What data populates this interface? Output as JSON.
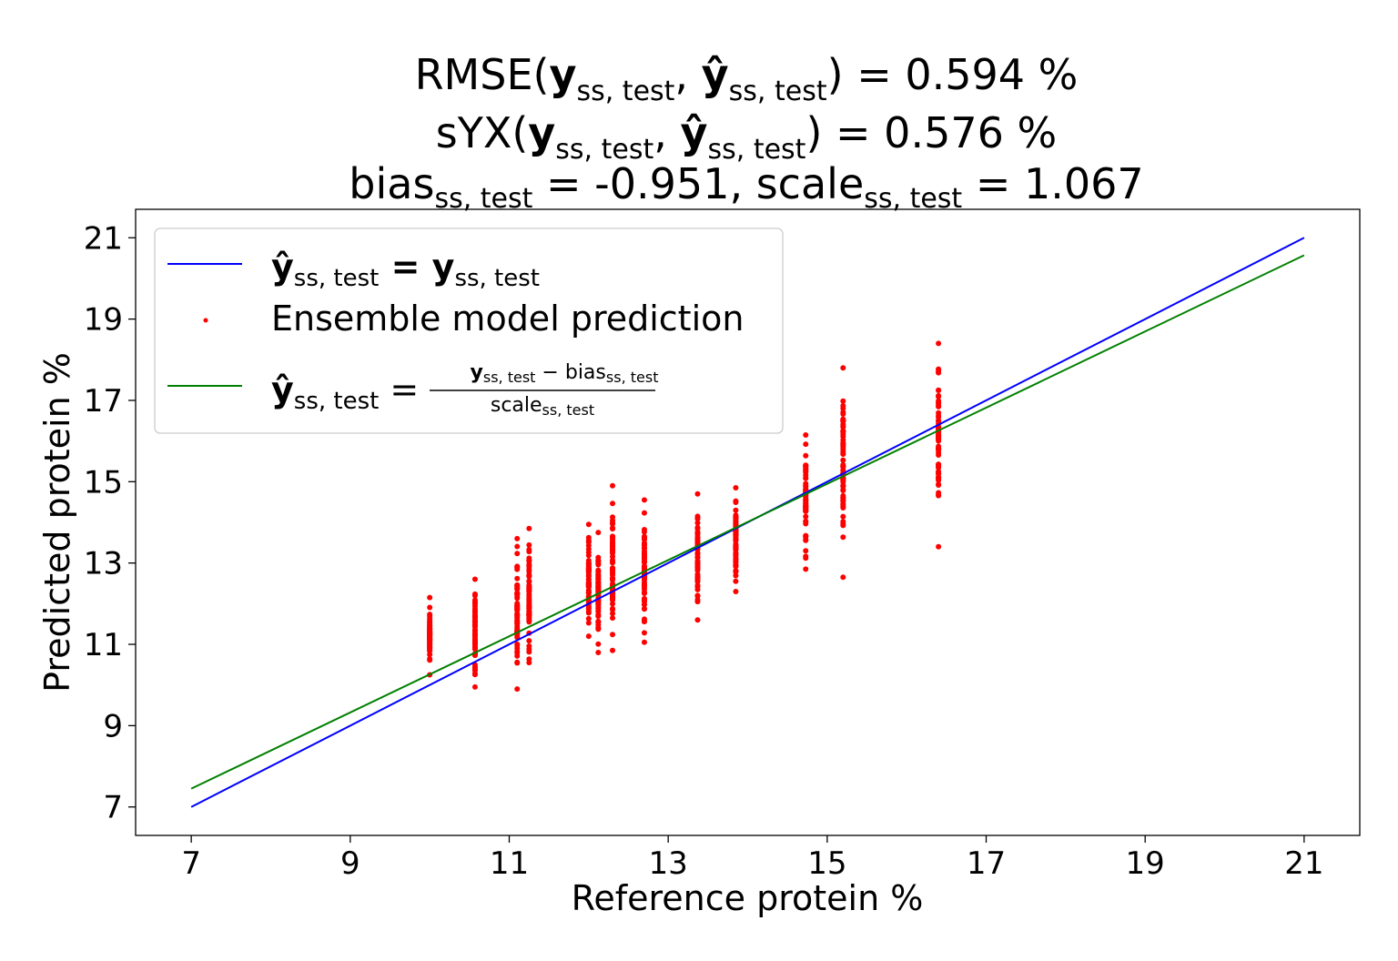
{
  "chart_data": {
    "type": "scatter",
    "title": {
      "line1": {
        "prefix": "RMSE(",
        "arg1": "y",
        "sub1": "ss, test",
        "arg2": "ŷ",
        "sub2": "ss, test",
        "suffix": ") = 0.594 %"
      },
      "line2": {
        "prefix": "sYX(",
        "arg1": "y",
        "sub1": "ss, test",
        "arg2": "ŷ",
        "sub2": "ss, test",
        "suffix": ") = 0.576 %"
      },
      "line3": {
        "bias_word": "bias",
        "bias_sub": "ss, test",
        "bias_value": " = -0.951, ",
        "scale_word": "scale",
        "scale_sub": "ss, test",
        "scale_value": " = 1.067"
      }
    },
    "xlabel": "Reference protein %",
    "ylabel": "Predicted protein %",
    "xlim": [
      6.3,
      21.7
    ],
    "ylim": [
      6.3,
      21.7
    ],
    "xticks": [
      "7",
      "9",
      "11",
      "13",
      "15",
      "17",
      "19",
      "21"
    ],
    "yticks": [
      "7",
      "9",
      "11",
      "13",
      "15",
      "17",
      "19",
      "21"
    ],
    "grid": false,
    "legend_position": "top-left",
    "legend": {
      "identity": {
        "lhs": "ŷ",
        "lhs_sub": "ss, test",
        "eq": " = ",
        "rhs": "y",
        "rhs_sub": "ss, test",
        "color": "#0000ff"
      },
      "scatter": {
        "label": "Ensemble model prediction",
        "color": "#ff0000"
      },
      "fit": {
        "lhs": "ŷ",
        "lhs_sub": "ss, test",
        "eq": " = ",
        "num_y": "y",
        "num_y_sub": "ss, test",
        "num_minus": " − bias",
        "num_bias_sub": "ss, test",
        "den": "scale",
        "den_sub": "ss, test",
        "color": "#008000"
      }
    },
    "series": [
      {
        "name": "identity",
        "type": "line",
        "color": "#0000ff",
        "x": [
          7,
          21
        ],
        "y": [
          7,
          21
        ]
      },
      {
        "name": "fit",
        "type": "line",
        "color": "#008000",
        "x": [
          7,
          21
        ],
        "y": [
          7.45,
          20.57
        ]
      },
      {
        "name": "Ensemble model prediction",
        "type": "scatter",
        "color": "#ff0000",
        "columns": [
          {
            "x": 10.0,
            "y_min": 10.25,
            "y_max": 12.15
          },
          {
            "x": 10.57,
            "y_min": 9.95,
            "y_max": 12.6
          },
          {
            "x": 11.1,
            "y_min": 9.9,
            "y_max": 13.6
          },
          {
            "x": 11.25,
            "y_min": 10.55,
            "y_max": 13.85
          },
          {
            "x": 12.0,
            "y_min": 11.2,
            "y_max": 13.95
          },
          {
            "x": 12.12,
            "y_min": 10.8,
            "y_max": 13.75
          },
          {
            "x": 12.3,
            "y_min": 10.85,
            "y_max": 14.9
          },
          {
            "x": 12.7,
            "y_min": 11.05,
            "y_max": 14.55
          },
          {
            "x": 13.37,
            "y_min": 11.6,
            "y_max": 14.7
          },
          {
            "x": 13.85,
            "y_min": 12.3,
            "y_max": 14.85
          },
          {
            "x": 14.73,
            "y_min": 12.85,
            "y_max": 16.15
          },
          {
            "x": 15.2,
            "y_min": 12.65,
            "y_max": 17.8
          },
          {
            "x": 16.4,
            "y_min": 13.4,
            "y_max": 18.4
          }
        ]
      }
    ]
  }
}
